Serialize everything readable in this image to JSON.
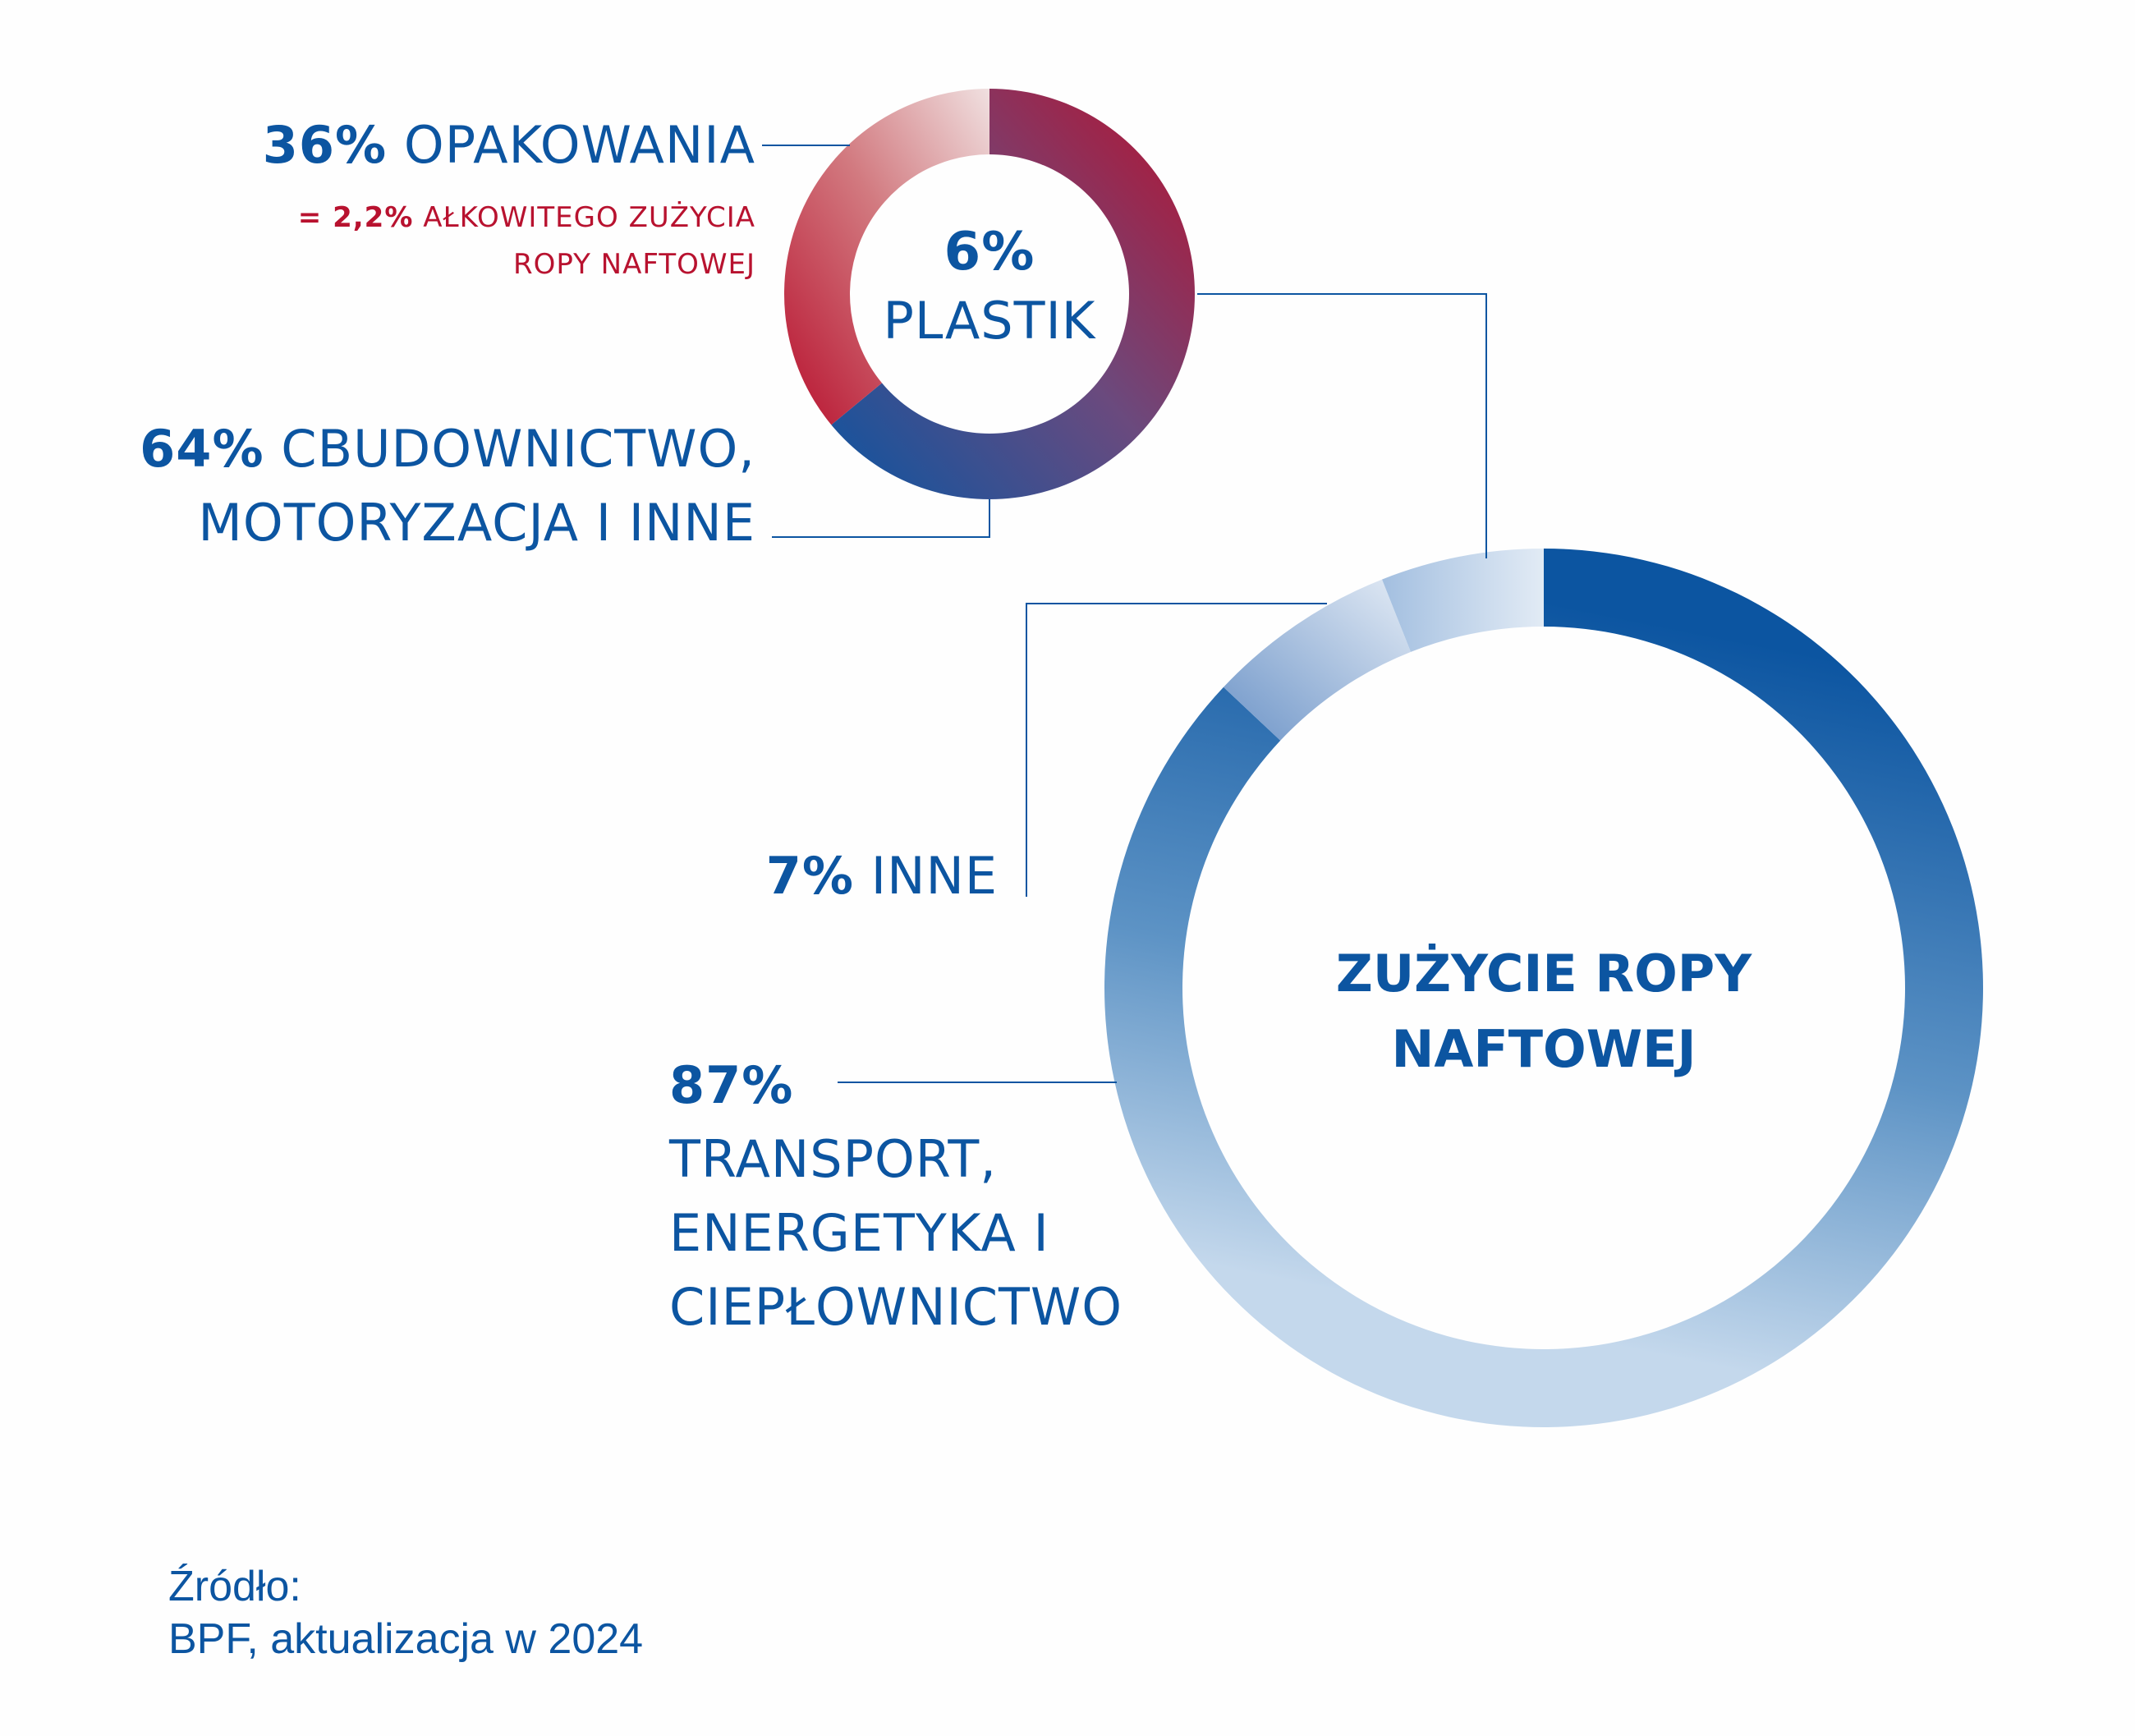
{
  "chart_data": [
    {
      "type": "pie",
      "title": "6% PLASTIK",
      "title_pct": "6%",
      "title_text": "PLASTIK",
      "slices": [
        {
          "pct_text": "36%",
          "label": "OPAKOWANIA",
          "value": 36,
          "color_start": "#b8122f",
          "color_end": "#ecd6d6"
        },
        {
          "pct_text": "64%",
          "label_line1": "CBUDOWNICTWO,",
          "label_line2": "MOTORYZACJA I INNE",
          "value": 64,
          "color_start": "#b8122f",
          "color_end": "#0c55a1"
        }
      ],
      "note": {
        "pct_text": "= 2,2%",
        "text_line1": "AŁKOWITEGO ZUŻYCIA",
        "text_line2": "ROPY NAFTOWEJ"
      }
    },
    {
      "type": "pie",
      "title_line1": "ZUŻYCIE ROPY",
      "title_line2": "NAFTOWEJ",
      "slices": [
        {
          "pct_text": "87%",
          "label_lines": [
            "TRANSPORT,",
            "ENERGETYKA I",
            "CIEPŁOWNICTWO"
          ],
          "value": 87,
          "color_start": "#0c55a1",
          "color_end": "#c4d8ec"
        },
        {
          "pct_text": "7%",
          "label": "INNE",
          "value": 7,
          "color_start": "#6e95c8",
          "color_end": "#dde8f3"
        },
        {
          "label": "",
          "value": 6,
          "color_start": "#a3bfe0",
          "color_end": "#dde8f3"
        }
      ]
    }
  ],
  "source": {
    "line1": "Źródło:",
    "line2": "BPF, aktualizacja w 2024"
  },
  "colors": {
    "blue": "#0c55a1",
    "red": "#b8122f",
    "pale_blue": "#c4d8ec"
  }
}
